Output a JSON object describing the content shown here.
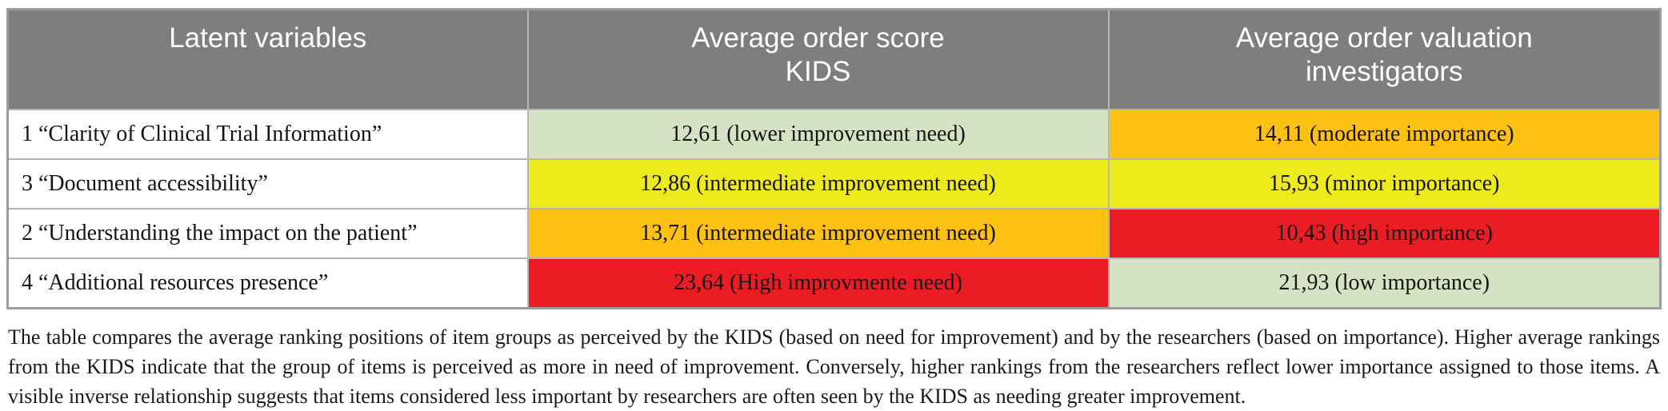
{
  "table": {
    "header": {
      "col1": "Latent variables",
      "col2_line1": "Average order score",
      "col2_line2": "KIDS",
      "col3_line1": "Average order valuation",
      "col3_line2": "investigators"
    },
    "rows": [
      {
        "variable": "1 “Clarity of Clinical Trial Information”",
        "kids": {
          "text": "12,61 (lower improvement need)",
          "bg": "#d5e3c4"
        },
        "investigators": {
          "text": "14,11 (moderate importance)",
          "bg": "#fcc112"
        }
      },
      {
        "variable": "3 “Document accessibility”",
        "kids": {
          "text": "12,86 (intermediate improvement need)",
          "bg": "#eeeb1d"
        },
        "investigators": {
          "text": "15,93 (minor importance)",
          "bg": "#eeeb1d"
        }
      },
      {
        "variable": "2 “Understanding the impact on the patient”",
        "kids": {
          "text": "13,71 (intermediate improvement need)",
          "bg": "#fcc112"
        },
        "investigators": {
          "text": "10,43 (high importance)",
          "bg": "#ec1c24"
        }
      },
      {
        "variable": "4 “Additional resources presence”",
        "kids": {
          "text": "23,64 (High improvmente need)",
          "bg": "#ec1c24"
        },
        "investigators": {
          "text": "21,93 (low importance)",
          "bg": "#d5e3c4"
        }
      }
    ],
    "colors": {
      "header_bg": "#7e7e7e",
      "header_text": "#ffffff",
      "low_green": "#d5e3c4",
      "amber": "#fcc112",
      "yellow": "#eeeb1d",
      "red": "#ec1c24",
      "border": "#b5b5b5"
    }
  },
  "caption": "The table compares the average ranking positions of item groups as perceived by the KIDS (based on need for improvement) and by the researchers (based on importance). Higher average rankings from the KIDS indicate that the group of items is perceived as more in need of improvement. Conversely, higher rankings from the researchers reflect lower importance assigned to those items. A visible inverse relationship suggests that items considered less important by researchers are often seen by the KIDS as needing greater improvement."
}
